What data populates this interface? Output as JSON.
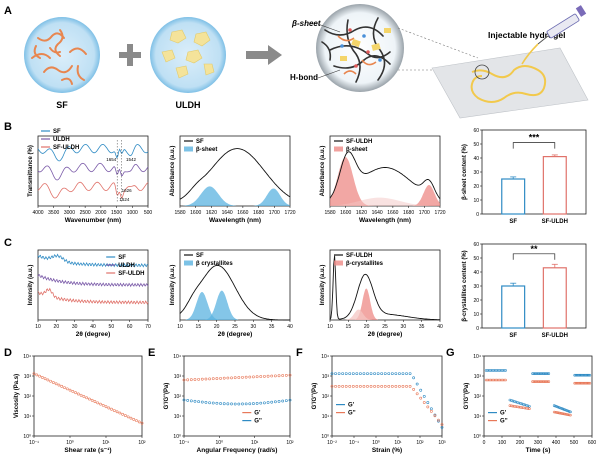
{
  "panel_letters": [
    "A",
    "B",
    "C",
    "D",
    "E",
    "F",
    "G"
  ],
  "schematic": {
    "sf_label": "SF",
    "uldh_label": "ULDH",
    "beta_sheet_label": "β-sheet",
    "hbond_label": "H-bond",
    "hydrogel_label": "Injectable hydrogel"
  },
  "colors": {
    "sf_line": "#2f8bc4",
    "uldh_line": "#7a5aa8",
    "sfuldh_line": "#e0726a",
    "blue_fill": "#5bb3e0",
    "pink_fill": "#ee8a86",
    "orange": "#e8795a"
  },
  "chart_data": [
    {
      "id": "B1",
      "type": "line",
      "ylabel": "Transmittance (%)",
      "xlabel": "Wavenumber (nm)",
      "ticks_x": [
        "4000",
        "3500",
        "3000",
        "2500",
        "2000",
        "1500",
        "1000",
        "500"
      ],
      "legend": [
        "SF",
        "ULDH",
        "SF-ULDH"
      ],
      "annotations": [
        "1654",
        "1542",
        "1626",
        "1524"
      ]
    },
    {
      "id": "B2",
      "type": "area",
      "ylabel": "Absorbance (a.u.)",
      "xlabel": "Wavelength (nm)",
      "ticks_x": [
        "1580",
        "1600",
        "1620",
        "1640",
        "1660",
        "1680",
        "1700",
        "1720"
      ],
      "legend": [
        "SF",
        "β-sheet"
      ]
    },
    {
      "id": "B3",
      "type": "area",
      "ylabel": "Absorbance (a.u.)",
      "xlabel": "Wavelength (nm)",
      "ticks_x": [
        "1580",
        "1600",
        "1620",
        "1640",
        "1660",
        "1680",
        "1700",
        "1720"
      ],
      "legend": [
        "SF-ULDH",
        "β-sheet"
      ]
    },
    {
      "id": "B4",
      "type": "bar",
      "ylabel": "β-sheet content (%)",
      "ticks_y": [
        "0",
        "10",
        "20",
        "30",
        "40",
        "50",
        "60"
      ],
      "categories": [
        "SF",
        "SF-ULDH"
      ],
      "values": [
        25,
        41
      ],
      "errors": [
        1.5,
        1.2
      ],
      "ylim": [
        0,
        60
      ],
      "significance": "***"
    },
    {
      "id": "C1",
      "type": "line",
      "ylabel": "Intensity (a.u.)",
      "xlabel": "2θ (degree)",
      "ticks_x": [
        "10",
        "20",
        "30",
        "40",
        "50",
        "60",
        "70"
      ],
      "legend": [
        "SF",
        "ULDH",
        "SF-ULDH"
      ]
    },
    {
      "id": "C2",
      "type": "area",
      "ylabel": "Intensity (a.u.)",
      "xlabel": "2θ (degree)",
      "ticks_x": [
        "10",
        "15",
        "20",
        "25",
        "30",
        "35",
        "40"
      ],
      "legend": [
        "SF",
        "β crystallites"
      ]
    },
    {
      "id": "C3",
      "type": "area",
      "ylabel": "Intensity (a.u.)",
      "xlabel": "2θ (degree)",
      "ticks_x": [
        "10",
        "15",
        "20",
        "25",
        "30",
        "35",
        "40"
      ],
      "legend": [
        "SF-ULDH",
        "β-crystallites"
      ]
    },
    {
      "id": "C4",
      "type": "bar",
      "ylabel": "β-crystallites content (%)",
      "ticks_y": [
        "0",
        "10",
        "20",
        "30",
        "40",
        "50",
        "60"
      ],
      "categories": [
        "SF",
        "SF-ULDH"
      ],
      "values": [
        30,
        43
      ],
      "errors": [
        2,
        2.5
      ],
      "ylim": [
        0,
        60
      ],
      "significance": "**"
    },
    {
      "id": "D",
      "type": "scatter",
      "ylabel": "Viscosity (Pa.s)",
      "xlabel": "Shear rate (s⁻¹)",
      "ticks_x": [
        "10⁻¹",
        "10⁰",
        "10¹",
        "10²"
      ],
      "ticks_y": [
        "10⁰",
        "10¹",
        "10²",
        "10³",
        "10⁴"
      ],
      "log_x": true,
      "log_y": true
    },
    {
      "id": "E",
      "type": "scatter",
      "ylabel": "G'/G''(Pa)",
      "xlabel": "Angular Frequency (rad/s)",
      "ticks_x": [
        "10⁻¹",
        "10⁰",
        "10¹",
        "10²"
      ],
      "ticks_y": [
        "10⁰",
        "10¹",
        "10²",
        "10³",
        "10⁴"
      ],
      "legend": [
        "G'",
        "G''"
      ],
      "log_x": true,
      "log_y": true
    },
    {
      "id": "F",
      "type": "scatter",
      "ylabel": "G'/G''(Pa)",
      "xlabel": "Strain (%)",
      "ticks_x": [
        "10⁻²",
        "10⁻¹",
        "10⁰",
        "10¹",
        "10²",
        "10³"
      ],
      "ticks_y": [
        "10⁰",
        "10¹",
        "10²",
        "10³",
        "10⁴"
      ],
      "legend": [
        "G'",
        "G''"
      ],
      "log_x": true,
      "log_y": true
    },
    {
      "id": "G",
      "type": "scatter",
      "ylabel": "G'/G''(Pa)",
      "xlabel": "Time (s)",
      "ticks_x": [
        "0",
        "100",
        "200",
        "300",
        "400",
        "500",
        "600"
      ],
      "ticks_y": [
        "10⁰",
        "10¹",
        "10²",
        "10³",
        "10⁴"
      ],
      "legend": [
        "G'",
        "G''"
      ],
      "log_y": true
    }
  ]
}
